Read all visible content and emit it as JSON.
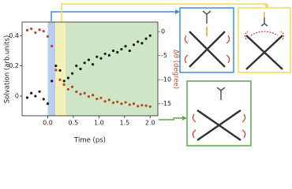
{
  "chart_data": {
    "type": "scatter",
    "xlabel": "Time (ps)",
    "ylabel": "Solvation (arb.units)",
    "y2label": "Δθ (degree)",
    "x": [
      -0.4,
      -0.32,
      -0.24,
      -0.16,
      -0.08,
      0,
      0.08,
      0.16,
      0.24,
      0.32,
      0.4,
      0.48,
      0.56,
      0.64,
      0.72,
      0.8,
      0.88,
      0.96,
      1.04,
      1.12,
      1.2,
      1.28,
      1.36,
      1.44,
      1.52,
      1.6,
      1.68,
      1.76,
      1.84,
      1.92,
      2.0
    ],
    "series": [
      {
        "color": "#1a1a1a",
        "values": [
          -0.01,
          0.02,
          0.0,
          0.03,
          -0.02,
          -0.05,
          0.1,
          0.2,
          0.17,
          0.1,
          0.12,
          0.15,
          0.2,
          0.18,
          0.22,
          0.24,
          0.21,
          0.26,
          0.25,
          0.28,
          0.27,
          0.3,
          0.29,
          0.31,
          0.33,
          0.3,
          0.34,
          0.36,
          0.35,
          0.38,
          0.4
        ]
      },
      {
        "color": "#b5482a",
        "axis": "y2",
        "values": [
          0.3,
          0.6,
          -0.2,
          0.4,
          0.1,
          -1,
          -3,
          -8,
          -10,
          -11,
          -12,
          -11.5,
          -12.5,
          -13,
          -12.8,
          -13.5,
          -13.2,
          -14,
          -13.8,
          -14.5,
          -14.2,
          -14.8,
          -14.6,
          -15,
          -14.7,
          -15.2,
          -15,
          -15.5,
          -15.3,
          -15.4,
          -15.6
        ]
      }
    ],
    "regions": [
      {
        "xlim": [
          0,
          0.15
        ],
        "color": "#b9cdf0"
      },
      {
        "xlim": [
          0.15,
          0.35
        ],
        "color": "#f3f1b4"
      },
      {
        "xlim": [
          0.35,
          2.15
        ],
        "color": "#cfe6c6"
      }
    ],
    "xlim": [
      -0.5,
      2.15
    ],
    "ylim": [
      -0.13,
      0.49
    ],
    "y2lim": [
      -17.5,
      2
    ],
    "xticks": [
      {
        "value": 0,
        "label": "0.0"
      },
      0.5,
      {
        "value": 1,
        "label": "1.0"
      },
      1.5,
      {
        "value": 2,
        "label": "2.0"
      }
    ],
    "yticks": [
      0,
      0.2,
      0.4
    ],
    "y2ticks": [
      0,
      -5,
      -10,
      -15
    ],
    "y2color": "#b5482a"
  }
}
